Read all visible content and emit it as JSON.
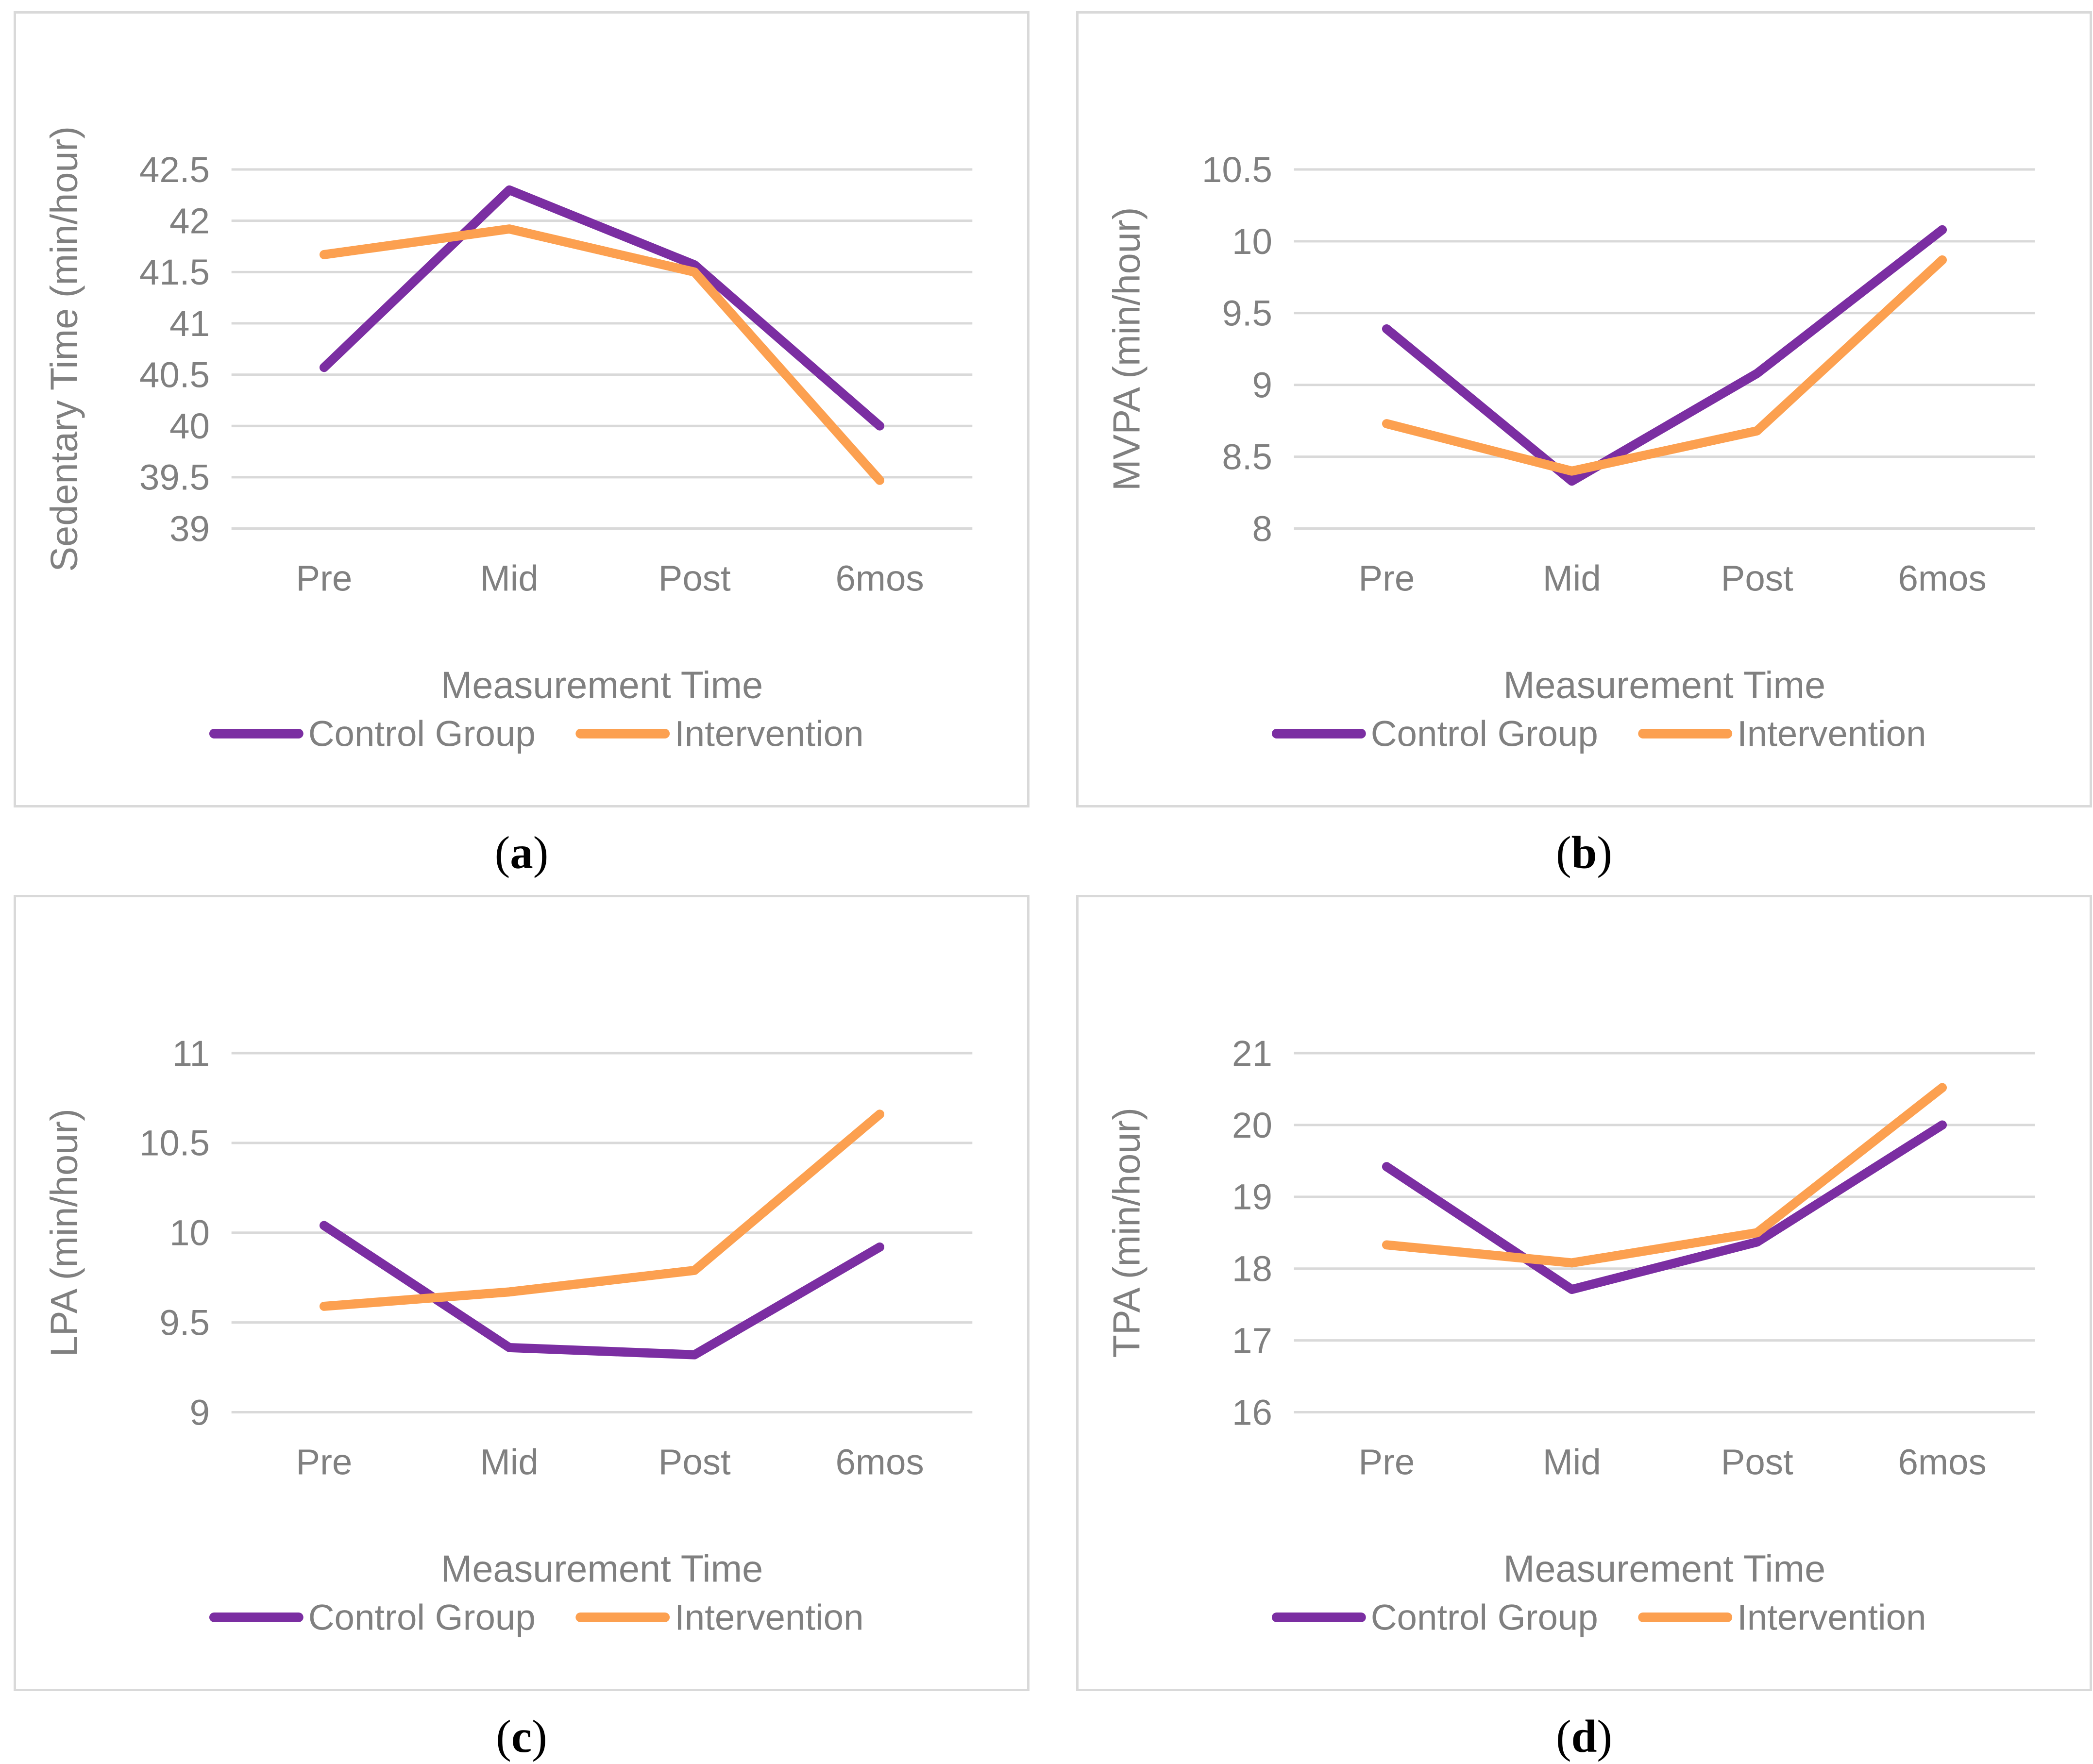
{
  "style": {
    "background": "#ffffff",
    "panel_border": "#d9d9d9",
    "grid_color": "#d9d9d9",
    "axis_text_color": "#808080",
    "caption_color": "#000000",
    "control_color": "#7b2ea2",
    "intervention_color": "#fca050"
  },
  "chart_data": [
    {
      "type": "line",
      "caption": {
        "open": "(",
        "letter": "a",
        "close": ")"
      },
      "ylabel": "Sedentary Time (min/hour)",
      "xlabel": "Measurement Time",
      "categories": [
        "Pre",
        "Mid",
        "Post",
        "6mos"
      ],
      "ylim": [
        39,
        42.5
      ],
      "yticks": [
        42.5,
        42,
        41.5,
        41,
        40.5,
        40,
        39.5,
        39
      ],
      "grid": true,
      "legend_position": "bottom",
      "series": [
        {
          "name": "Control Group",
          "color": "#7b2ea2",
          "values": [
            40.57,
            42.3,
            41.57,
            40.0
          ]
        },
        {
          "name": "Intervention",
          "color": "#fca050",
          "values": [
            41.67,
            41.92,
            41.5,
            39.47
          ]
        }
      ]
    },
    {
      "type": "line",
      "caption": {
        "open": "(",
        "letter": "b",
        "close": ")"
      },
      "ylabel": "MVPA (min/hour)",
      "xlabel": "Measurement Time",
      "categories": [
        "Pre",
        "Mid",
        "Post",
        "6mos"
      ],
      "ylim": [
        8,
        10.5
      ],
      "yticks": [
        10.5,
        10,
        9.5,
        9,
        8.5,
        8
      ],
      "grid": true,
      "legend_position": "bottom",
      "series": [
        {
          "name": "Control Group",
          "color": "#7b2ea2",
          "values": [
            9.39,
            8.33,
            9.08,
            10.08
          ]
        },
        {
          "name": "Intervention",
          "color": "#fca050",
          "values": [
            8.73,
            8.4,
            8.68,
            9.87
          ]
        }
      ]
    },
    {
      "type": "line",
      "caption": {
        "open": "(",
        "letter": "c",
        "close": ")"
      },
      "ylabel": "LPA (min/hour)",
      "xlabel": "Measurement Time",
      "categories": [
        "Pre",
        "Mid",
        "Post",
        "6mos"
      ],
      "ylim": [
        9,
        11
      ],
      "yticks": [
        11,
        10.5,
        10,
        9.5,
        9
      ],
      "grid": true,
      "legend_position": "bottom",
      "series": [
        {
          "name": "Control Group",
          "color": "#7b2ea2",
          "values": [
            10.04,
            9.36,
            9.32,
            9.92
          ]
        },
        {
          "name": "Intervention",
          "color": "#fca050",
          "values": [
            9.59,
            9.67,
            9.79,
            10.66
          ]
        }
      ]
    },
    {
      "type": "line",
      "caption": {
        "open": "(",
        "letter": "d",
        "close": ")"
      },
      "ylabel": "TPA (min/hour)",
      "xlabel": "Measurement Time",
      "categories": [
        "Pre",
        "Mid",
        "Post",
        "6mos"
      ],
      "ylim": [
        16,
        21
      ],
      "yticks": [
        21,
        20,
        19,
        18,
        17,
        16
      ],
      "grid": true,
      "legend_position": "bottom",
      "series": [
        {
          "name": "Control Group",
          "color": "#7b2ea2",
          "values": [
            19.42,
            17.71,
            18.37,
            20.0
          ]
        },
        {
          "name": "Intervention",
          "color": "#fca050",
          "values": [
            18.33,
            18.08,
            18.5,
            20.52
          ]
        }
      ]
    }
  ]
}
